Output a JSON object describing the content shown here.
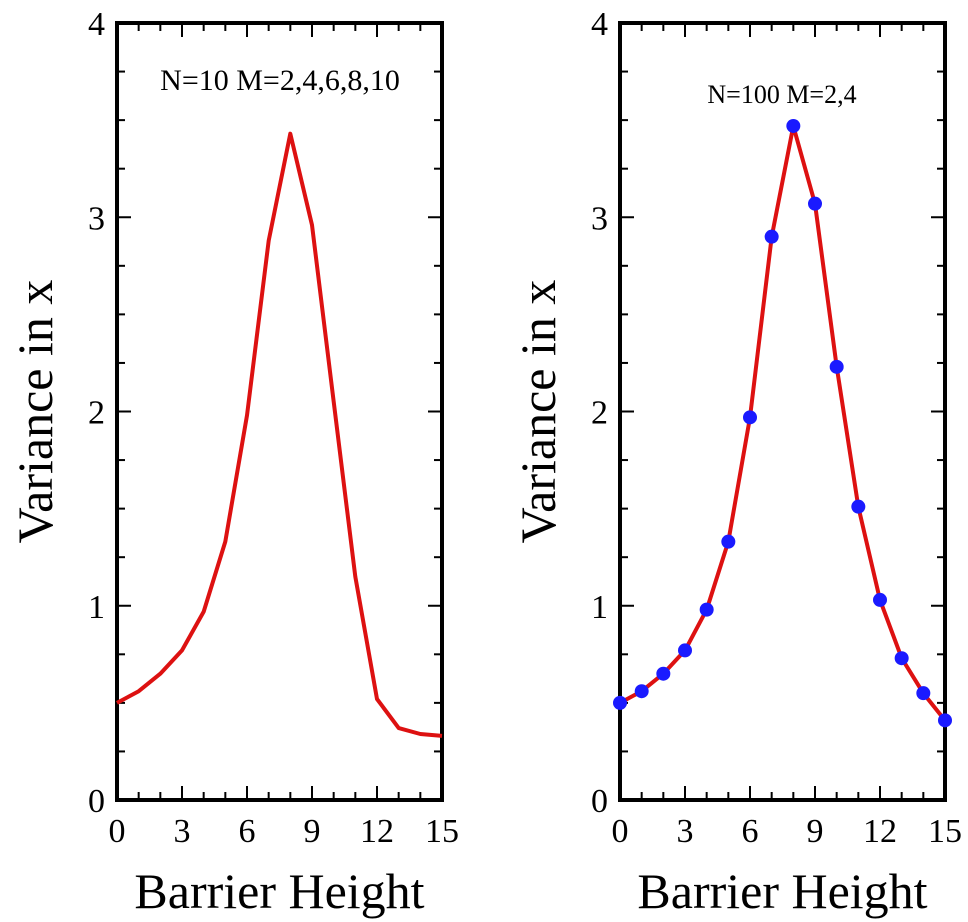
{
  "chart_data": [
    {
      "type": "line",
      "title": "",
      "annotation": "N=10 M=2,4,6,8,10",
      "xlabel": "Barrier Height",
      "ylabel": "Variance in x",
      "xlim": [
        0,
        15
      ],
      "ylim": [
        0,
        4
      ],
      "xticks": [
        0,
        3,
        6,
        9,
        12,
        15
      ],
      "yticks": [
        0,
        1,
        2,
        3,
        4
      ],
      "grid": false,
      "series": [
        {
          "color": "#dd1111",
          "markers": false,
          "x": [
            0,
            1,
            2,
            3,
            4,
            5,
            6,
            7,
            8,
            9,
            10,
            11,
            12,
            13,
            14,
            15
          ],
          "y": [
            0.5,
            0.56,
            0.65,
            0.77,
            0.97,
            1.33,
            1.98,
            2.88,
            3.43,
            2.96,
            2.05,
            1.15,
            0.52,
            0.37,
            0.34,
            0.33
          ]
        }
      ]
    },
    {
      "type": "line",
      "title": "",
      "annotation": "N=100 M=2,4",
      "xlabel": "Barrier Height",
      "ylabel": "Variance in x",
      "xlim": [
        0,
        15
      ],
      "ylim": [
        0,
        4
      ],
      "xticks": [
        0,
        3,
        6,
        9,
        12,
        15
      ],
      "yticks": [
        0,
        1,
        2,
        3,
        4
      ],
      "grid": false,
      "series": [
        {
          "color": "#dd1111",
          "marker_color": "#1a1aff",
          "markers": true,
          "x": [
            0,
            1,
            2,
            3,
            4,
            5,
            6,
            7,
            8,
            9,
            10,
            11,
            12,
            13,
            14,
            15
          ],
          "y": [
            0.5,
            0.56,
            0.65,
            0.77,
            0.98,
            1.33,
            1.97,
            2.9,
            3.47,
            3.07,
            2.23,
            1.51,
            1.03,
            0.73,
            0.55,
            0.41
          ]
        }
      ]
    }
  ]
}
